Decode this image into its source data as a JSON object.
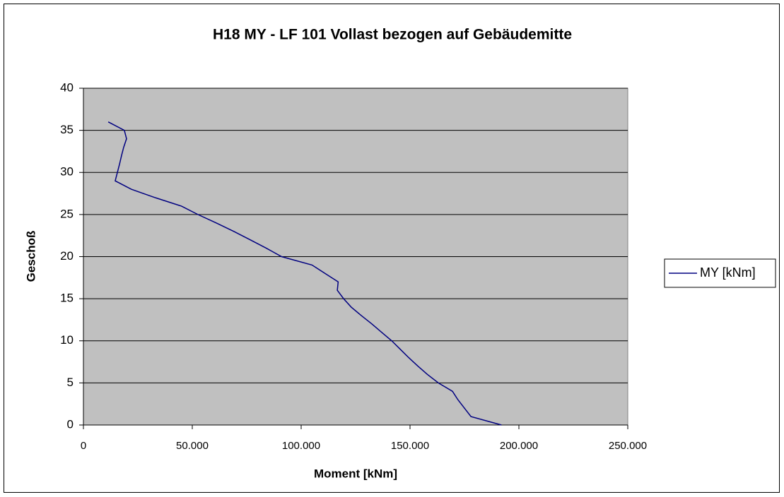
{
  "chart_data": {
    "type": "line",
    "title": "H18 MY - LF 101 Vollast bezogen auf Gebäudemitte",
    "x_label": "Moment [kNm]",
    "y_label": "Geschoß",
    "x": [
      192000,
      178000,
      175000,
      172000,
      169500,
      163000,
      158000,
      153600,
      149400,
      145500,
      141600,
      137000,
      132500,
      127600,
      123000,
      119500,
      116600,
      117000,
      111000,
      105000,
      91000,
      84000,
      76600,
      69000,
      61000,
      52600,
      45000,
      33000,
      22000,
      14600,
      15600,
      16600,
      17500,
      18500,
      19800,
      18800,
      11400
    ],
    "series": [
      {
        "name": "MY [kNm]",
        "color": "#000080",
        "values": [
          0,
          1,
          2,
          3,
          4,
          5,
          6,
          7,
          8,
          9,
          10,
          11,
          12,
          13,
          14,
          15,
          16,
          17,
          18,
          19,
          20,
          21,
          22,
          23,
          24,
          25,
          26,
          27,
          28,
          29,
          30,
          31,
          32,
          33,
          34,
          35,
          36
        ]
      }
    ],
    "xlim": [
      0,
      250000
    ],
    "xticks": [
      0,
      {
        "value": 50000,
        "label": "50.000"
      },
      {
        "value": 100000,
        "label": "100.000"
      },
      {
        "value": 150000,
        "label": "150.000"
      },
      {
        "value": 200000,
        "label": "200.000"
      },
      {
        "value": 250000,
        "label": "250.000"
      }
    ],
    "ylim": [
      0,
      40
    ],
    "yticks": [
      0,
      5,
      10,
      15,
      20,
      25,
      30,
      35,
      40
    ],
    "grid": true,
    "legend": "right",
    "plot_background": "#c0c0c0"
  }
}
